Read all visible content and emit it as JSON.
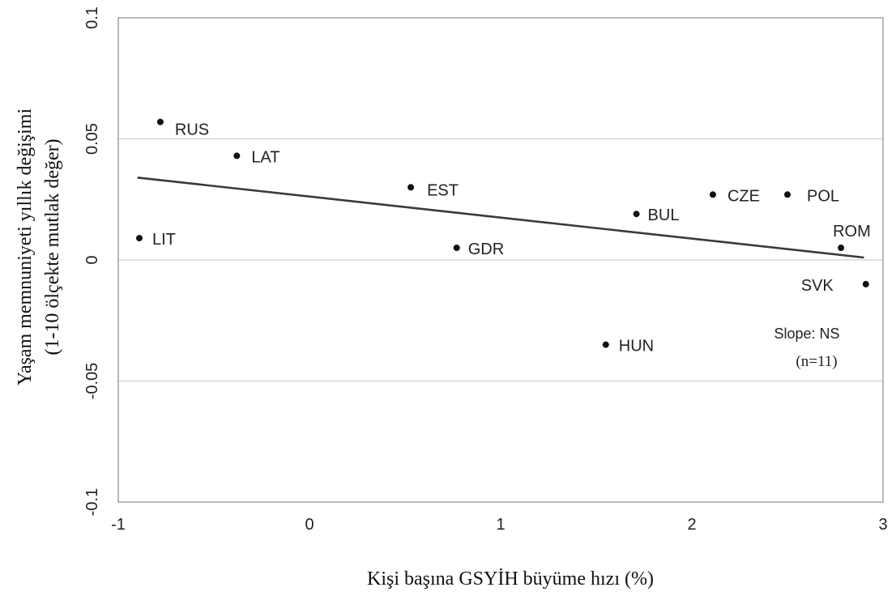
{
  "chart_data": {
    "type": "scatter",
    "xlabel": "Kişi başına GSYİH büyüme hızı (%)",
    "ylabel_line1": "Yaşam memnuniyeti yıllık değişimi",
    "ylabel_line2": "(1-10 ölçekte mutlak değer)",
    "xlim": [
      -1,
      3
    ],
    "ylim": [
      -0.1,
      0.1
    ],
    "x_ticks": [
      {
        "value": -1,
        "label": "-1"
      },
      {
        "value": 0,
        "label": "0"
      },
      {
        "value": 1,
        "label": "1"
      },
      {
        "value": 2,
        "label": "2"
      },
      {
        "value": 3,
        "label": "3"
      }
    ],
    "y_ticks": [
      {
        "value": 0.1,
        "label": "0.1"
      },
      {
        "value": 0.05,
        "label": "0.05"
      },
      {
        "value": 0,
        "label": "0"
      },
      {
        "value": -0.05,
        "label": "-0.05"
      },
      {
        "value": -0.1,
        "label": "-0.1"
      }
    ],
    "gridlines": "horizontal",
    "points": [
      {
        "label": "RUS",
        "x": -0.78,
        "y": 0.057
      },
      {
        "label": "LAT",
        "x": -0.38,
        "y": 0.043
      },
      {
        "label": "EST",
        "x": 0.53,
        "y": 0.03
      },
      {
        "label": "LIT",
        "x": -0.89,
        "y": 0.009
      },
      {
        "label": "GDR",
        "x": 0.77,
        "y": 0.005
      },
      {
        "label": "BUL",
        "x": 1.71,
        "y": 0.019
      },
      {
        "label": "CZE",
        "x": 2.11,
        "y": 0.027
      },
      {
        "label": "POL",
        "x": 2.5,
        "y": 0.027
      },
      {
        "label": "ROM",
        "x": 2.78,
        "y": 0.005
      },
      {
        "label": "SVK",
        "x": 2.91,
        "y": -0.01
      },
      {
        "label": "HUN",
        "x": 1.55,
        "y": -0.035
      }
    ],
    "trendline": {
      "x": [
        -0.9,
        2.9
      ],
      "y": [
        0.034,
        0.001
      ]
    },
    "annotation_slope": "Slope: NS",
    "annotation_n": "(n=11)"
  }
}
